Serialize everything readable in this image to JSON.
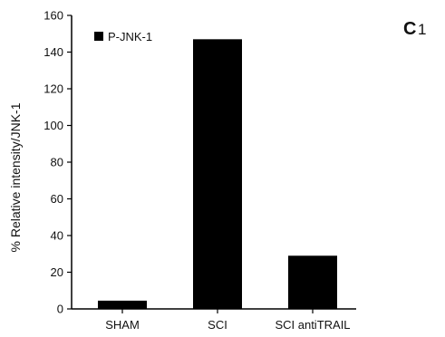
{
  "panel": {
    "letter": "C",
    "number": "1"
  },
  "chart_data": {
    "type": "bar",
    "categories": [
      "SHAM",
      "SCI",
      "SCI antiTRAIL"
    ],
    "series": [
      {
        "name": "P-JNK-1",
        "values": [
          4.5,
          147,
          29
        ],
        "color": "#000000"
      }
    ],
    "title": "",
    "xlabel": "",
    "ylabel": "% Relative intensity/JNK-1",
    "ylim": [
      0,
      160
    ],
    "yticks": [
      0,
      20,
      40,
      60,
      80,
      100,
      120,
      140,
      160
    ],
    "grid": false,
    "legend_position": "top-left"
  }
}
